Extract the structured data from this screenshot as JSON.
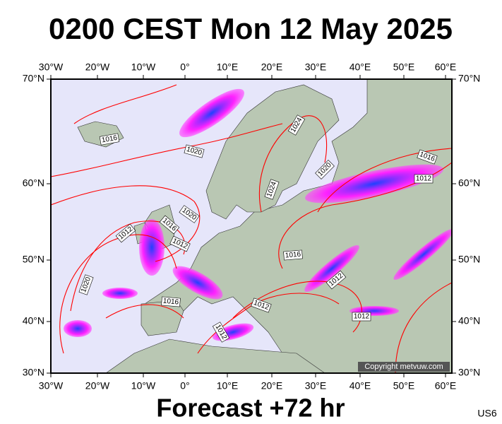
{
  "header": {
    "title": "0200 CEST Mon 12 May 2025"
  },
  "map": {
    "lon_labels": [
      "30°W",
      "20°W",
      "10°W",
      "0°",
      "10°E",
      "20°E",
      "30°E",
      "40°E",
      "50°E",
      "60°E"
    ],
    "lat_labels": [
      "70°N",
      "60°N",
      "50°N",
      "40°N",
      "30°N"
    ],
    "isobar_labels": [
      "1016",
      "1020",
      "1024",
      "1020",
      "1024",
      "1016",
      "1012",
      "1020",
      "1016",
      "1012",
      "1012",
      "1016",
      "1020",
      "1016",
      "1012",
      "1012",
      "1012",
      "1012"
    ],
    "copyright": "Copyright metvuw.com"
  },
  "footer": {
    "caption": "Forecast +72 hr",
    "code": "US6"
  }
}
